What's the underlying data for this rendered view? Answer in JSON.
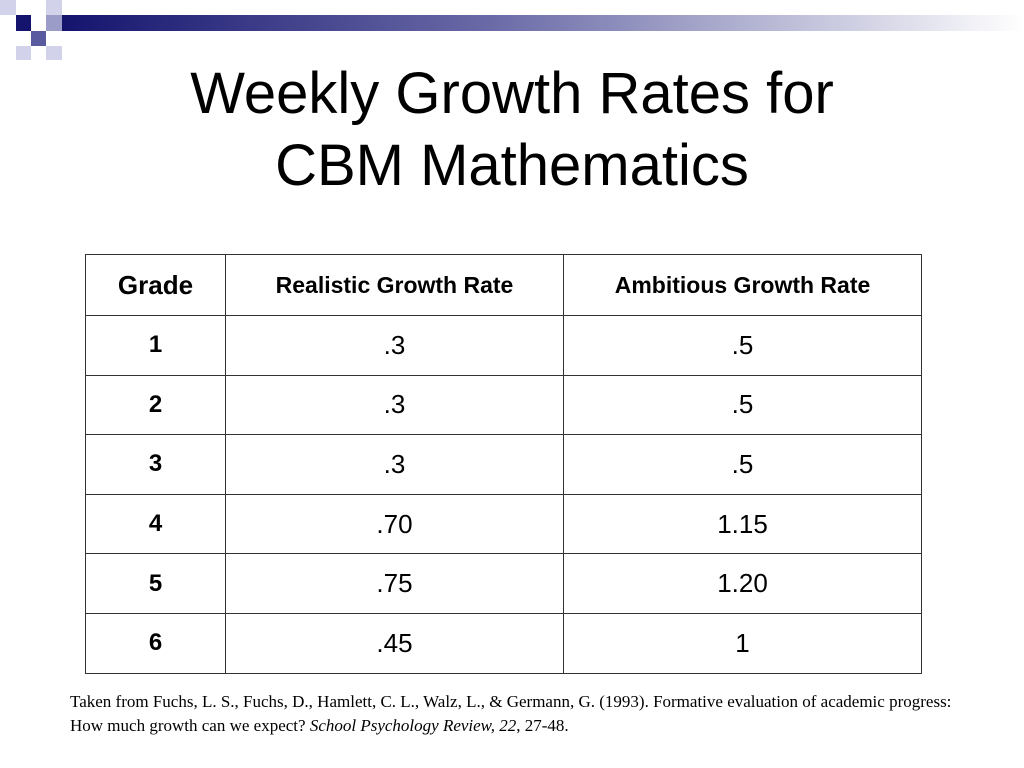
{
  "slide": {
    "title_line1": "Weekly Growth Rates for",
    "title_line2": "CBM Mathematics",
    "decor_colors": [
      "#14146e",
      "#5a5aa0",
      "#9c9cc8",
      "#d2d2ea"
    ]
  },
  "table": {
    "headers": {
      "grade": "Grade",
      "realistic": "Realistic Growth Rate",
      "ambitious": "Ambitious Growth Rate"
    },
    "rows": [
      {
        "grade": "1",
        "realistic": ".3",
        "ambitious": ".5"
      },
      {
        "grade": "2",
        "realistic": ".3",
        "ambitious": ".5"
      },
      {
        "grade": "3",
        "realistic": ".3",
        "ambitious": ".5"
      },
      {
        "grade": "4",
        "realistic": ".70",
        "ambitious": "1.15"
      },
      {
        "grade": "5",
        "realistic": ".75",
        "ambitious": "1.20"
      },
      {
        "grade": "6",
        "realistic": ".45",
        "ambitious": "1"
      }
    ]
  },
  "citation": {
    "text_prefix": "Taken from Fuchs, L. S., Fuchs, D., Hamlett, C. L., Walz, L., & Germann, G. (1993). Formative evaluation of academic progress: How much growth can we expect? ",
    "journal": "School Psychology Review, 22",
    "text_suffix": ", 27-48."
  }
}
